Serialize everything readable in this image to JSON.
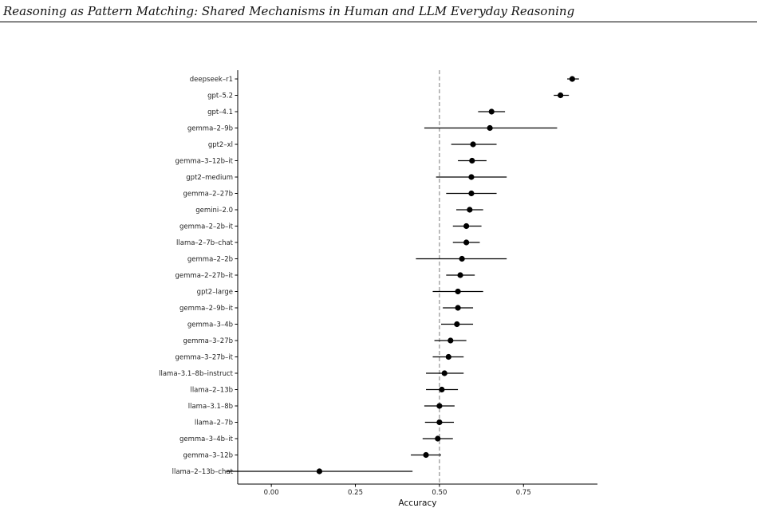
{
  "header": {
    "running_title": "Reasoning as Pattern Matching: Shared Mechanisms in Human and LLM Everyday Reasoning"
  },
  "chart_data": {
    "type": "scatter",
    "title": "",
    "xlabel": "Accuracy",
    "ylabel": "",
    "xlim": [
      -0.1,
      0.97
    ],
    "x_ticks": [
      0.0,
      0.25,
      0.5,
      0.75
    ],
    "x_tick_labels": [
      "0.00",
      "0.25",
      "0.50",
      "0.75"
    ],
    "reference_line": {
      "x": 0.5,
      "style": "dashed"
    },
    "grid": false,
    "legend": "none",
    "point_color": "#000000",
    "error_bar_color": "#000000",
    "reference_color": "#999999",
    "models": [
      {
        "label": "deepseek–r1",
        "x": 0.895,
        "lo": 0.88,
        "hi": 0.915
      },
      {
        "label": "gpt–5.2",
        "x": 0.86,
        "lo": 0.84,
        "hi": 0.885
      },
      {
        "label": "gpt–4.1",
        "x": 0.655,
        "lo": 0.615,
        "hi": 0.695
      },
      {
        "label": "gemma–2–9b",
        "x": 0.65,
        "lo": 0.455,
        "hi": 0.85
      },
      {
        "label": "gpt2–xl",
        "x": 0.6,
        "lo": 0.535,
        "hi": 0.67
      },
      {
        "label": "gemma–3–12b–it",
        "x": 0.597,
        "lo": 0.555,
        "hi": 0.64
      },
      {
        "label": "gpt2–medium",
        "x": 0.595,
        "lo": 0.49,
        "hi": 0.7
      },
      {
        "label": "gemma–2–27b",
        "x": 0.595,
        "lo": 0.52,
        "hi": 0.67
      },
      {
        "label": "gemini–2.0",
        "x": 0.59,
        "lo": 0.55,
        "hi": 0.63
      },
      {
        "label": "gemma–2–2b–it",
        "x": 0.58,
        "lo": 0.54,
        "hi": 0.625
      },
      {
        "label": "llama–2–7b–chat",
        "x": 0.58,
        "lo": 0.54,
        "hi": 0.62
      },
      {
        "label": "gemma–2–2b",
        "x": 0.567,
        "lo": 0.43,
        "hi": 0.7
      },
      {
        "label": "gemma–2–27b–it",
        "x": 0.562,
        "lo": 0.52,
        "hi": 0.605
      },
      {
        "label": "gpt2–large",
        "x": 0.555,
        "lo": 0.48,
        "hi": 0.63
      },
      {
        "label": "gemma–2–9b–it",
        "x": 0.555,
        "lo": 0.51,
        "hi": 0.6
      },
      {
        "label": "gemma–3–4b",
        "x": 0.552,
        "lo": 0.505,
        "hi": 0.6
      },
      {
        "label": "gemma–3–27b",
        "x": 0.533,
        "lo": 0.485,
        "hi": 0.58
      },
      {
        "label": "gemma–3–27b–it",
        "x": 0.527,
        "lo": 0.48,
        "hi": 0.572
      },
      {
        "label": "llama–3.1–8b–instruct",
        "x": 0.515,
        "lo": 0.46,
        "hi": 0.572
      },
      {
        "label": "llama–2–13b",
        "x": 0.507,
        "lo": 0.46,
        "hi": 0.555
      },
      {
        "label": "llama–3.1–8b",
        "x": 0.5,
        "lo": 0.455,
        "hi": 0.545
      },
      {
        "label": "llama–2–7b",
        "x": 0.5,
        "lo": 0.457,
        "hi": 0.543
      },
      {
        "label": "gemma–3–4b–it",
        "x": 0.495,
        "lo": 0.45,
        "hi": 0.54
      },
      {
        "label": "gemma–3–12b",
        "x": 0.46,
        "lo": 0.415,
        "hi": 0.505
      },
      {
        "label": "llama–2–13b–chat",
        "x": 0.143,
        "lo": -0.135,
        "hi": 0.42
      }
    ]
  }
}
